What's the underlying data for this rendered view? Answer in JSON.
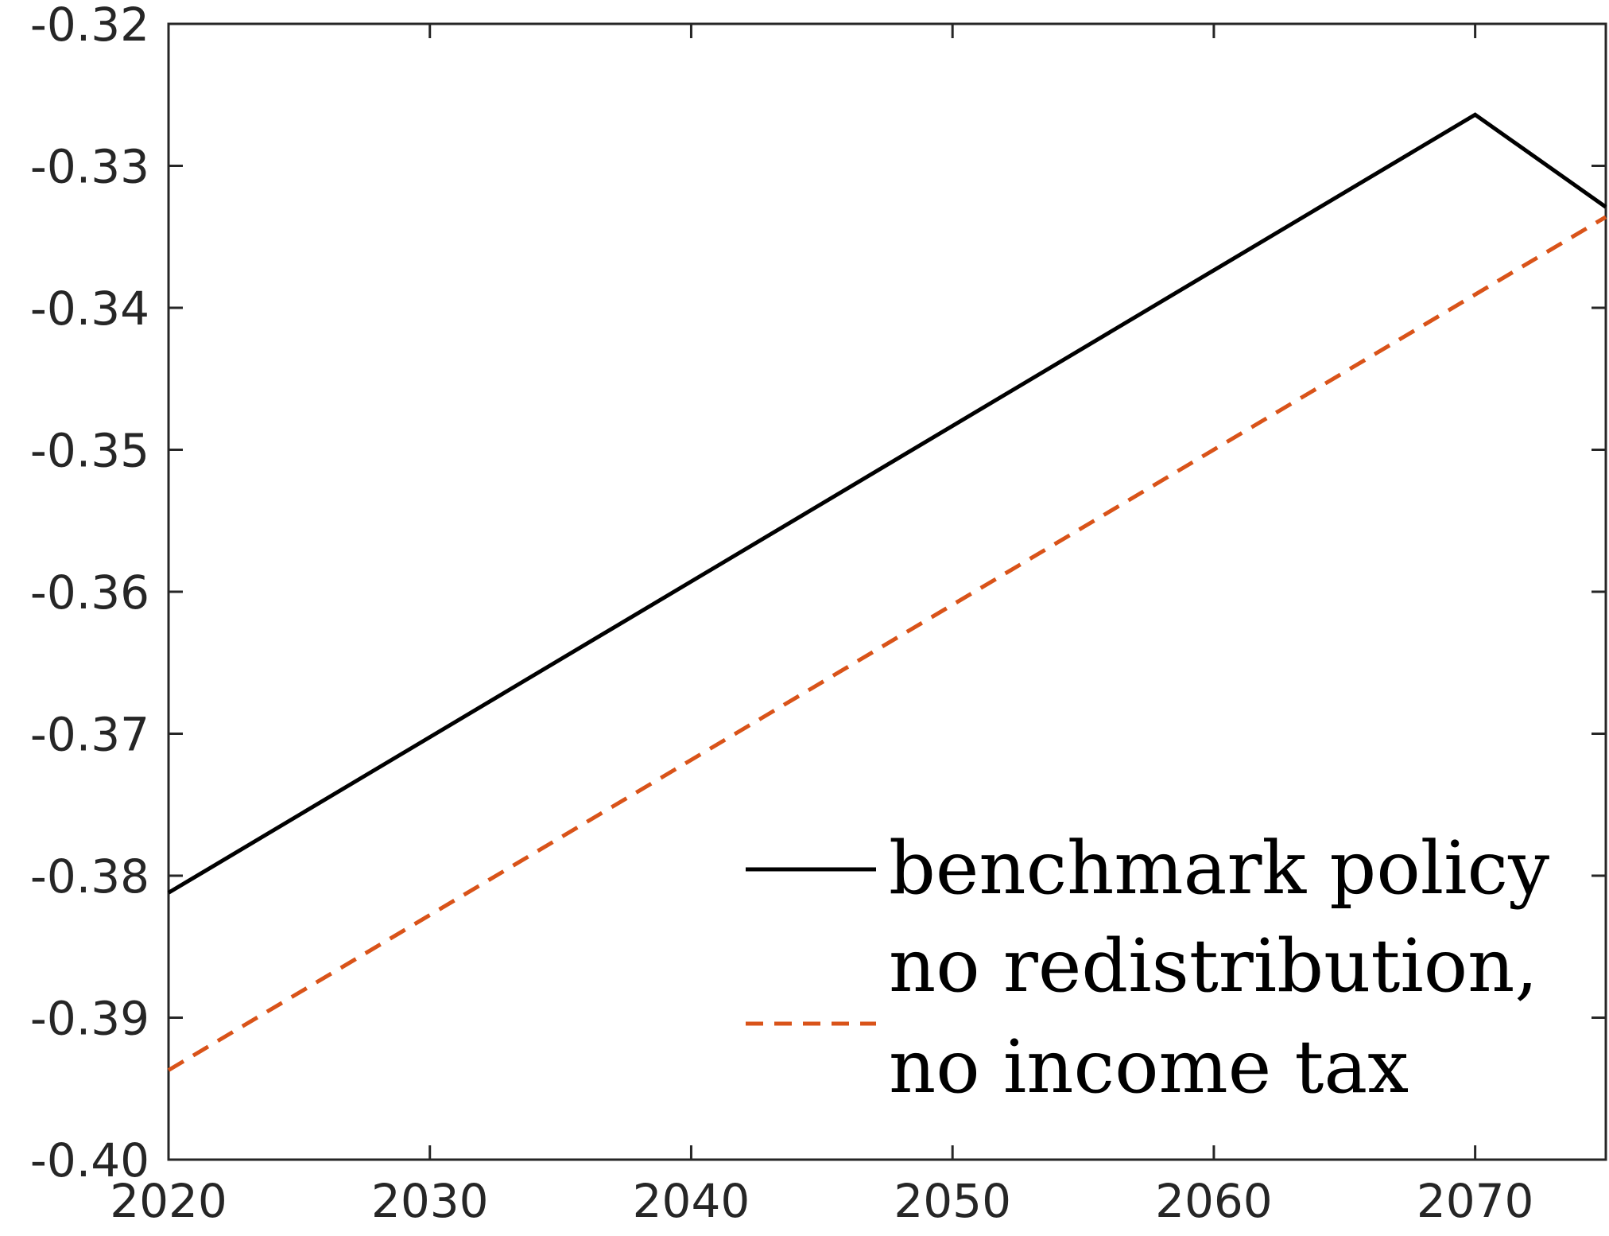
{
  "chart_data": {
    "type": "line",
    "title": "",
    "xlabel": "",
    "ylabel": "",
    "xlim": [
      2020,
      2075
    ],
    "ylim": [
      -0.4,
      -0.32
    ],
    "x_ticks": [
      2020,
      2030,
      2040,
      2050,
      2060,
      2070
    ],
    "x_tick_labels": [
      "2020",
      "2030",
      "2040",
      "2050",
      "2060",
      "2070"
    ],
    "y_ticks": [
      -0.32,
      -0.33,
      -0.34,
      -0.35,
      -0.36,
      -0.37,
      -0.38,
      -0.39,
      -0.4
    ],
    "y_tick_labels": [
      "-0.32",
      "-0.33",
      "-0.34",
      "-0.35",
      "-0.36",
      "-0.37",
      "-0.38",
      "-0.39",
      "-0.40"
    ],
    "grid": false,
    "legend_position": "bottom-right",
    "series": [
      {
        "name": "benchmark policy",
        "color": "#000000",
        "style": "solid",
        "x": [
          2020,
          2070,
          2075
        ],
        "y": [
          -0.3812,
          -0.3264,
          -0.3329
        ]
      },
      {
        "name": "no redistribution, no income tax",
        "legend_lines": [
          "no redistribution,",
          "no income tax"
        ],
        "color": "#d95319",
        "style": "dashed",
        "x": [
          2020,
          2075
        ],
        "y": [
          -0.3937,
          -0.3336
        ]
      }
    ]
  }
}
